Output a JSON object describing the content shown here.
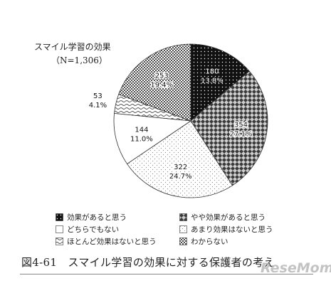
{
  "chart_data": {
    "type": "pie",
    "title": "スマイル学習の効果",
    "subtitle": "（N=1,306）",
    "start_angle_deg": 0,
    "direction": "clockwise",
    "slices": [
      {
        "name": "効果があると思う",
        "value": 180,
        "percent": "13.8%",
        "pattern": "solid-dots"
      },
      {
        "name": "やや効果があると思う",
        "value": 354,
        "percent": "27.1%",
        "pattern": "checker"
      },
      {
        "name": "あまり効果はないと思う",
        "value": 322,
        "percent": "24.7%",
        "pattern": "light-dots"
      },
      {
        "name": "どちらでもない",
        "value": 144,
        "percent": "11.0%",
        "pattern": "blank"
      },
      {
        "name": "ほとんど効果はないと思う",
        "value": 53,
        "percent": "4.1%",
        "pattern": "wave"
      },
      {
        "name": "わからない",
        "value": 253,
        "percent": "19.4%",
        "pattern": "dense-dots"
      }
    ],
    "legend": [
      {
        "label": "効果があると思う",
        "pattern": "solid-dots"
      },
      {
        "label": "やや効果があると思う",
        "pattern": "checker"
      },
      {
        "label": "どちらでもない",
        "pattern": "blank"
      },
      {
        "label": "あまり効果はないと思う",
        "pattern": "light-dots"
      },
      {
        "label": "ほとんど効果はないと思う",
        "pattern": "wave"
      },
      {
        "label": "わからない",
        "pattern": "dense-dots"
      }
    ]
  },
  "caption": "図4-61　スマイル学習の効果に対する保護者の考え",
  "watermark": "ReseMom"
}
